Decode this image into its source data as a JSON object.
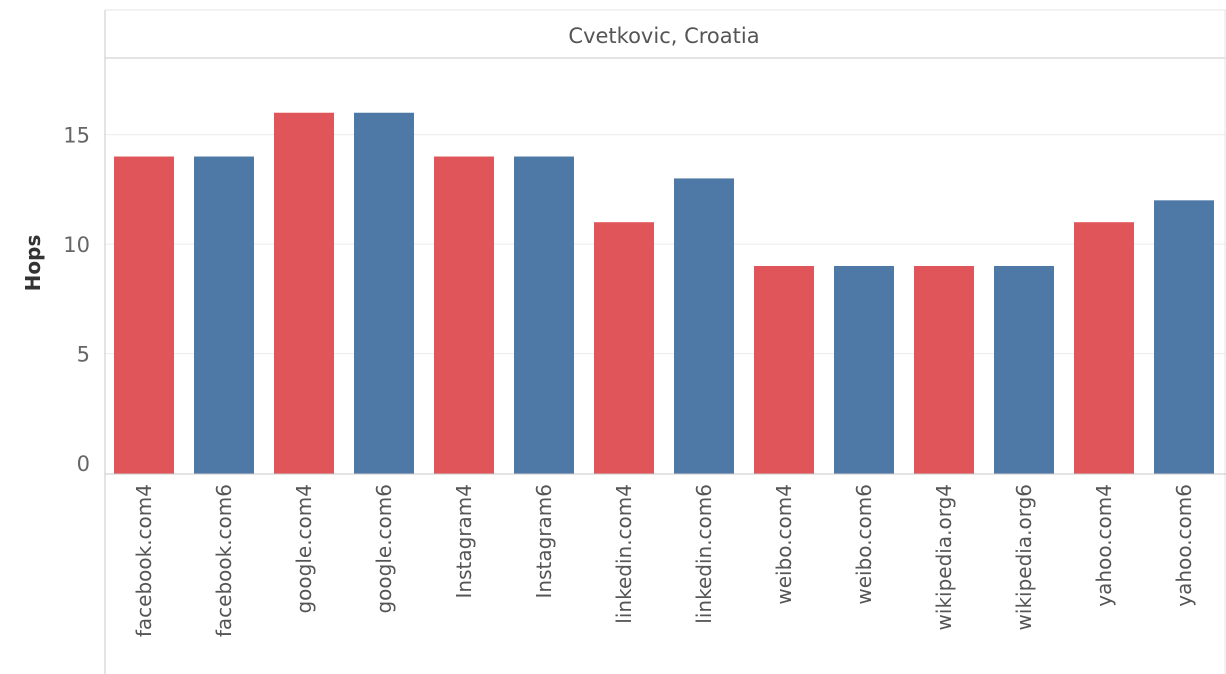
{
  "chart_data": {
    "type": "bar",
    "title": "Cvetkovic, Croatia",
    "ylabel": "Hops",
    "xlabel": "",
    "ylim": [
      -0.5,
      18.5
    ],
    "yticks": [
      0,
      5,
      10,
      15
    ],
    "grid": true,
    "categories": [
      "facebook.com4",
      "facebook.com6",
      "google.com4",
      "google.com6",
      "Instagram4",
      "Instagram6",
      "linkedin.com4",
      "linkedin.com6",
      "weibo.com4",
      "weibo.com6",
      "wikipedia.org4",
      "wikipedia.org6",
      "yahoo.com4",
      "yahoo.com6"
    ],
    "values": [
      14,
      14,
      16,
      16,
      14,
      14,
      11,
      13,
      9,
      9,
      9,
      9,
      11,
      12
    ],
    "colors": [
      "#e0555a",
      "#4e79a7",
      "#e0555a",
      "#4e79a7",
      "#e0555a",
      "#4e79a7",
      "#e0555a",
      "#4e79a7",
      "#e0555a",
      "#4e79a7",
      "#e0555a",
      "#4e79a7",
      "#e0555a",
      "#4e79a7"
    ]
  }
}
